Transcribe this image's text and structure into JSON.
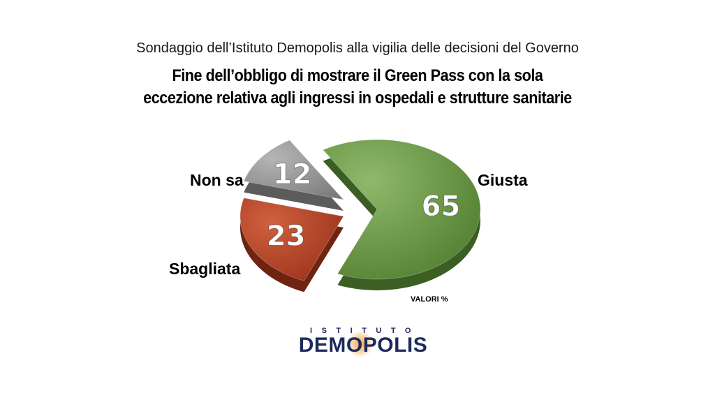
{
  "subtitle": "Sondaggio dell’Istituto Demopolis alla vigilia delle decisioni del Governo",
  "title_lines": [
    "Fine dell’obbligo di mostrare il Green Pass con la sola",
    "eccezione relativa agli ingressi in ospedali e strutture sanitarie"
  ],
  "chart_data": {
    "type": "pie",
    "categories": [
      "Giusta",
      "Sbagliata",
      "Non sa"
    ],
    "values": [
      65,
      23,
      12
    ],
    "colors": [
      "#5a8a35",
      "#a83a1e",
      "#8c8c8c"
    ],
    "units_note": "VALORI %",
    "exploded": true,
    "style": "3d"
  },
  "brand": {
    "top": "ISTITUTO",
    "name": "DEMOPOLIS"
  }
}
